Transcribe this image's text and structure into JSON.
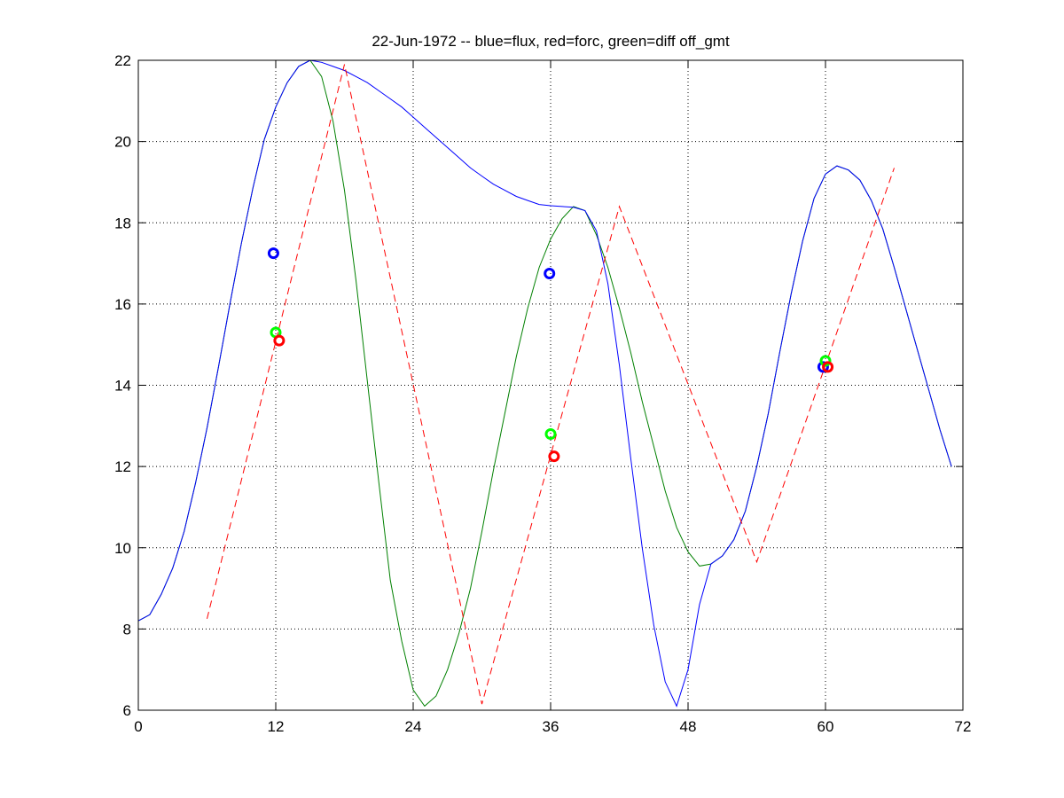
{
  "chart_data": {
    "type": "line",
    "title": "22-Jun-1972 -- blue=flux, red=forc, green=diff off_gmt",
    "xlabel": "",
    "ylabel": "",
    "xlim": [
      0,
      72
    ],
    "ylim": [
      6,
      22
    ],
    "x_ticks": [
      0,
      12,
      24,
      36,
      48,
      60,
      72
    ],
    "y_ticks": [
      6,
      8,
      10,
      12,
      14,
      16,
      18,
      20,
      22
    ],
    "x_tick_labels": [
      "0",
      "12",
      "24",
      "36",
      "48",
      "60",
      "72"
    ],
    "y_tick_labels": [
      "6",
      "8",
      "10",
      "12",
      "14",
      "16",
      "18",
      "20",
      "22"
    ],
    "grid": true,
    "series": [
      {
        "color": "#0000ff",
        "style": "solid",
        "x": [
          0,
          1,
          2,
          3,
          4,
          5,
          6,
          7,
          8,
          9,
          10,
          11,
          12,
          13,
          14,
          15,
          16,
          17,
          18,
          19,
          20,
          21,
          22,
          23,
          24,
          25,
          26,
          27,
          28,
          29,
          30,
          31,
          32,
          33,
          34,
          35,
          36,
          37,
          38,
          39,
          40,
          41,
          42,
          43,
          44,
          45,
          46,
          47,
          48,
          49,
          50,
          51,
          52,
          53,
          54,
          55,
          56,
          57,
          58,
          59,
          60,
          61,
          62,
          63,
          64,
          65,
          66,
          67,
          68,
          69,
          70,
          71
        ],
        "y": [
          8.2,
          8.35,
          8.85,
          9.5,
          10.4,
          11.6,
          12.95,
          14.45,
          16.0,
          17.5,
          18.85,
          20.05,
          20.85,
          21.45,
          21.85,
          22.0,
          21.95,
          21.85,
          21.75,
          21.6,
          21.45,
          21.25,
          21.05,
          20.85,
          20.6,
          20.35,
          20.1,
          19.85,
          19.6,
          19.35,
          19.15,
          18.95,
          18.8,
          18.65,
          18.55,
          18.45,
          18.42,
          18.4,
          18.38,
          18.3,
          17.8,
          16.5,
          14.5,
          12.2,
          10.0,
          8.1,
          6.7,
          6.1,
          7.0,
          8.6,
          9.6,
          9.8,
          10.2,
          10.9,
          12.0,
          13.3,
          14.8,
          16.25,
          17.55,
          18.6,
          19.2,
          19.4,
          19.3,
          19.05,
          18.55,
          17.85,
          16.9,
          15.9,
          14.9,
          13.9,
          12.9,
          12.0
        ]
      },
      {
        "color": "#008000",
        "style": "solid",
        "x": [
          0,
          1,
          2,
          3,
          4,
          5,
          6,
          7,
          8,
          9,
          10,
          11,
          12,
          13,
          14,
          15,
          16,
          17,
          18,
          19,
          20,
          21,
          22,
          23,
          24,
          25,
          26,
          27,
          28,
          29,
          30,
          31,
          32,
          33,
          34,
          35,
          36,
          37,
          38,
          39,
          40,
          41,
          42,
          43,
          44,
          45,
          46,
          47,
          48,
          49,
          50,
          51,
          52,
          53,
          54,
          55,
          56,
          57,
          58,
          59,
          60,
          61,
          62,
          63,
          64,
          65,
          66,
          67,
          68,
          69,
          70,
          71
        ],
        "y": [
          8.2,
          8.35,
          8.85,
          9.5,
          10.4,
          11.6,
          12.95,
          14.45,
          16.0,
          17.5,
          18.85,
          20.05,
          20.85,
          21.45,
          21.85,
          22.0,
          21.6,
          20.5,
          18.8,
          16.6,
          14.1,
          11.6,
          9.2,
          7.7,
          6.5,
          6.1,
          6.35,
          7.0,
          7.9,
          9.0,
          10.4,
          11.9,
          13.3,
          14.7,
          15.9,
          16.9,
          17.6,
          18.1,
          18.4,
          18.3,
          17.7,
          16.9,
          15.9,
          14.8,
          13.6,
          12.5,
          11.4,
          10.5,
          9.9,
          9.55,
          9.6,
          9.8,
          10.2,
          10.9,
          12.0,
          13.3,
          14.8,
          16.25,
          17.55,
          18.6,
          19.2,
          19.4,
          19.3,
          19.05,
          18.55,
          17.85,
          16.9,
          15.9,
          14.9,
          13.9,
          12.9,
          12.0
        ]
      },
      {
        "color": "#ff0000",
        "style": "dashed",
        "x": [
          6,
          18,
          30,
          42,
          54,
          66
        ],
        "y": [
          8.25,
          21.9,
          6.15,
          18.4,
          9.65,
          19.35
        ]
      }
    ],
    "markers": [
      {
        "color": "#0000ff",
        "x": 11.8,
        "y": 17.25
      },
      {
        "color": "#00ff00",
        "x": 12.0,
        "y": 15.3
      },
      {
        "color": "#ff0000",
        "x": 12.3,
        "y": 15.1
      },
      {
        "color": "#0000ff",
        "x": 35.9,
        "y": 16.75
      },
      {
        "color": "#00ff00",
        "x": 36.0,
        "y": 12.8
      },
      {
        "color": "#ff0000",
        "x": 36.3,
        "y": 12.25
      },
      {
        "color": "#0000ff",
        "x": 59.8,
        "y": 14.45
      },
      {
        "color": "#00ff00",
        "x": 60.0,
        "y": 14.6
      },
      {
        "color": "#ff0000",
        "x": 60.2,
        "y": 14.45
      }
    ]
  }
}
